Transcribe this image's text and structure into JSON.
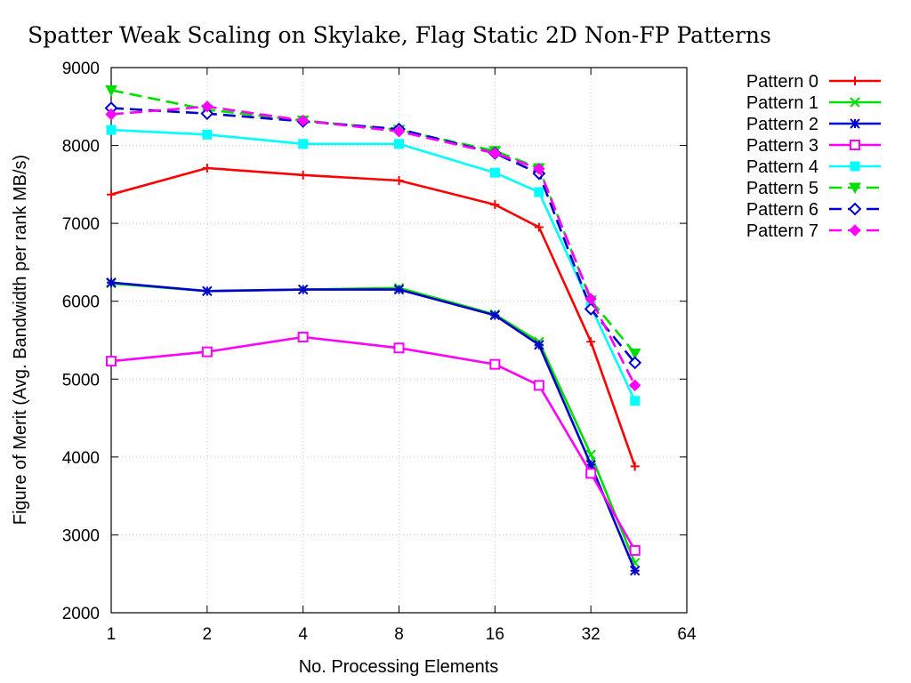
{
  "chart_data": {
    "type": "line",
    "title": "Spatter Weak Scaling on Skylake, Flag Static 2D Non-FP Patterns",
    "xlabel": "No. Processing Elements",
    "ylabel": "Figure of Merit (Avg. Bandwidth per rank MB/s)",
    "x_scale": "log2",
    "xlim": [
      1,
      64
    ],
    "ylim": [
      2000,
      9000
    ],
    "x_ticks": [
      1,
      2,
      4,
      8,
      16,
      32,
      64
    ],
    "y_ticks": [
      2000,
      3000,
      4000,
      5000,
      6000,
      7000,
      8000,
      9000
    ],
    "grid": true,
    "legend_position": "outside-right",
    "x": [
      1,
      2,
      4,
      8,
      16,
      22,
      32,
      44
    ],
    "series": [
      {
        "name": "Pattern 0",
        "color": "#ff0000",
        "dash": "solid",
        "marker": "plus",
        "values": [
          7370,
          7710,
          7620,
          7550,
          7240,
          6950,
          5480,
          3880
        ]
      },
      {
        "name": "Pattern 1",
        "color": "#00dd00",
        "dash": "solid",
        "marker": "x",
        "values": [
          6230,
          6130,
          6150,
          6170,
          5830,
          5480,
          4030,
          2640
        ]
      },
      {
        "name": "Pattern 2",
        "color": "#0000cc",
        "dash": "solid",
        "marker": "star",
        "values": [
          6240,
          6130,
          6150,
          6150,
          5820,
          5440,
          3900,
          2540
        ]
      },
      {
        "name": "Pattern 3",
        "color": "#ff00ff",
        "dash": "solid",
        "marker": "open-square",
        "values": [
          5230,
          5350,
          5540,
          5400,
          5190,
          4920,
          3790,
          2800
        ]
      },
      {
        "name": "Pattern 4",
        "color": "#00ffff",
        "dash": "solid",
        "marker": "filled-square",
        "values": [
          8200,
          8140,
          8020,
          8020,
          7650,
          7400,
          5930,
          4720
        ]
      },
      {
        "name": "Pattern 5",
        "color": "#00dd00",
        "dash": "dashed",
        "marker": "filled-triangle-down",
        "values": [
          8710,
          8460,
          8320,
          8200,
          7930,
          7710,
          6010,
          5330
        ]
      },
      {
        "name": "Pattern 6",
        "color": "#0000cc",
        "dash": "dashed",
        "marker": "open-diamond",
        "values": [
          8480,
          8410,
          8310,
          8210,
          7900,
          7640,
          5900,
          5210
        ]
      },
      {
        "name": "Pattern 7",
        "color": "#ff00ff",
        "dash": "dashed",
        "marker": "filled-diamond",
        "values": [
          8400,
          8500,
          8320,
          8180,
          7900,
          7700,
          6030,
          4920
        ]
      }
    ]
  }
}
